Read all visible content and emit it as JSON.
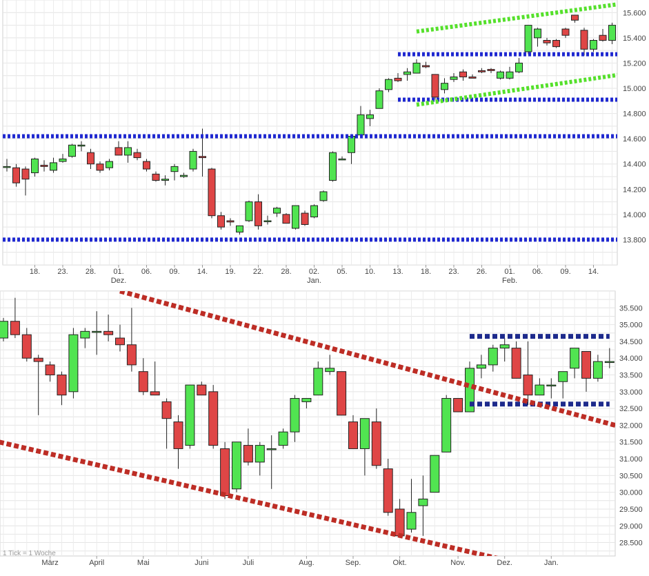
{
  "chart_data": [
    {
      "type": "candlestick",
      "scale": "daily",
      "ylim": [
        13600,
        15700
      ],
      "y_ticks": [
        13800,
        14000,
        14200,
        14400,
        14600,
        14800,
        15000,
        15200,
        15400,
        15600
      ],
      "y_tick_labels": [
        "13.800",
        "14.000",
        "14.200",
        "14.400",
        "14.600",
        "14.800",
        "15.000",
        "15.200",
        "15.400",
        "15.600"
      ],
      "x_ticks": [
        {
          "label": "18.",
          "sub": "",
          "i": 3
        },
        {
          "label": "23.",
          "sub": "",
          "i": 6
        },
        {
          "label": "28.",
          "sub": "",
          "i": 9
        },
        {
          "label": "01.",
          "sub": "Dez.",
          "i": 12
        },
        {
          "label": "06.",
          "sub": "",
          "i": 15
        },
        {
          "label": "09.",
          "sub": "",
          "i": 18
        },
        {
          "label": "14.",
          "sub": "",
          "i": 21
        },
        {
          "label": "19.",
          "sub": "",
          "i": 24
        },
        {
          "label": "22.",
          "sub": "",
          "i": 27
        },
        {
          "label": "28.",
          "sub": "",
          "i": 30
        },
        {
          "label": "02.",
          "sub": "Jan.",
          "i": 33
        },
        {
          "label": "05.",
          "sub": "",
          "i": 36
        },
        {
          "label": "10.",
          "sub": "",
          "i": 39
        },
        {
          "label": "13.",
          "sub": "",
          "i": 42
        },
        {
          "label": "18.",
          "sub": "",
          "i": 45
        },
        {
          "label": "23.",
          "sub": "",
          "i": 48
        },
        {
          "label": "26.",
          "sub": "",
          "i": 51
        },
        {
          "label": "01.",
          "sub": "Feb.",
          "i": 54
        },
        {
          "label": "06.",
          "sub": "",
          "i": 57
        },
        {
          "label": "09.",
          "sub": "",
          "i": 60
        },
        {
          "label": "14.",
          "sub": "",
          "i": 63
        }
      ],
      "candles": [
        [
          14380,
          14440,
          14340,
          14380
        ],
        [
          14370,
          14400,
          14220,
          14250
        ],
        [
          14360,
          14380,
          14150,
          14280
        ],
        [
          14330,
          14450,
          14300,
          14440
        ],
        [
          14390,
          14430,
          14340,
          14380
        ],
        [
          14350,
          14450,
          14330,
          14410
        ],
        [
          14420,
          14480,
          14410,
          14440
        ],
        [
          14460,
          14560,
          14450,
          14550
        ],
        [
          14550,
          14580,
          14500,
          14550
        ],
        [
          14490,
          14520,
          14360,
          14400
        ],
        [
          14400,
          14420,
          14330,
          14350
        ],
        [
          14370,
          14440,
          14350,
          14420
        ],
        [
          14530,
          14580,
          14470,
          14470
        ],
        [
          14470,
          14580,
          14410,
          14530
        ],
        [
          14490,
          14520,
          14430,
          14450
        ],
        [
          14420,
          14440,
          14340,
          14360
        ],
        [
          14320,
          14340,
          14260,
          14270
        ],
        [
          14270,
          14310,
          14230,
          14280
        ],
        [
          14340,
          14400,
          14270,
          14380
        ],
        [
          14300,
          14330,
          14290,
          14310
        ],
        [
          14360,
          14520,
          14340,
          14500
        ],
        [
          14460,
          14680,
          14300,
          14450
        ],
        [
          14360,
          14370,
          13970,
          13990
        ],
        [
          13990,
          14020,
          13880,
          13900
        ],
        [
          13950,
          13970,
          13910,
          13940
        ],
        [
          13860,
          13910,
          13840,
          13910
        ],
        [
          13950,
          14110,
          13940,
          14100
        ],
        [
          14100,
          14160,
          13880,
          13910
        ],
        [
          13950,
          13990,
          13920,
          13950
        ],
        [
          14010,
          14060,
          13980,
          14050
        ],
        [
          14000,
          14010,
          13940,
          13930
        ],
        [
          13890,
          14070,
          13880,
          14070
        ],
        [
          14010,
          14030,
          13910,
          13920
        ],
        [
          13980,
          14080,
          13970,
          14070
        ],
        [
          14110,
          14190,
          14100,
          14180
        ],
        [
          14270,
          14500,
          14260,
          14490
        ],
        [
          14440,
          14460,
          14430,
          14440
        ],
        [
          14490,
          14620,
          14400,
          14620
        ],
        [
          14630,
          14860,
          14620,
          14790
        ],
        [
          14760,
          14830,
          14700,
          14790
        ],
        [
          14840,
          15000,
          14840,
          14980
        ],
        [
          14990,
          15080,
          14970,
          15070
        ],
        [
          15080,
          15120,
          15050,
          15060
        ],
        [
          15110,
          15160,
          15060,
          15130
        ],
        [
          15120,
          15230,
          15120,
          15200
        ],
        [
          15180,
          15210,
          15160,
          15170
        ],
        [
          15110,
          15110,
          14910,
          14930
        ],
        [
          14990,
          15080,
          14960,
          15040
        ],
        [
          15070,
          15120,
          15050,
          15090
        ],
        [
          15130,
          15150,
          15060,
          15090
        ],
        [
          15090,
          15110,
          15080,
          15080
        ],
        [
          15140,
          15160,
          15120,
          15130
        ],
        [
          15150,
          15160,
          15120,
          15140
        ],
        [
          15080,
          15140,
          15070,
          15130
        ],
        [
          15080,
          15170,
          15070,
          15130
        ],
        [
          15130,
          15240,
          15120,
          15200
        ],
        [
          15290,
          15500,
          15270,
          15500
        ],
        [
          15400,
          15480,
          15330,
          15470
        ],
        [
          15380,
          15400,
          15340,
          15360
        ],
        [
          15380,
          15390,
          15320,
          15330
        ],
        [
          15470,
          15480,
          15400,
          15420
        ],
        [
          15580,
          15580,
          15520,
          15540
        ],
        [
          15460,
          15480,
          15260,
          15310
        ],
        [
          15310,
          15390,
          15290,
          15380
        ],
        [
          15420,
          15470,
          15370,
          15380
        ],
        [
          15380,
          15520,
          15350,
          15500
        ]
      ],
      "support_resistance": [
        {
          "style": "dotted",
          "color": "#1f28d0",
          "y": 14620,
          "from": -1,
          "to": 66
        },
        {
          "style": "dotted",
          "color": "#1f28d0",
          "y": 13800,
          "from": -1,
          "to": 66
        },
        {
          "style": "dotted",
          "color": "#1f28d0",
          "y": 15270,
          "from": 42,
          "to": 66
        },
        {
          "style": "dotted",
          "color": "#1f28d0",
          "y": 14910,
          "from": 42,
          "to": 66
        }
      ],
      "trend_lines": [
        {
          "style": "dotted",
          "color": "#55e02b",
          "from": [
            44,
            15450
          ],
          "to": [
            66,
            15670
          ]
        },
        {
          "style": "dotted",
          "color": "#55e02b",
          "from": [
            44,
            14870
          ],
          "to": [
            66,
            15110
          ]
        }
      ],
      "up_color": "#51e451",
      "down_color": "#df4646"
    },
    {
      "type": "candlestick",
      "scale": "weekly",
      "ylim": [
        28100,
        36000
      ],
      "y_ticks": [
        28500,
        29000,
        29500,
        30000,
        30500,
        31000,
        31500,
        32000,
        32500,
        33000,
        33500,
        34000,
        34500,
        35000,
        35500
      ],
      "y_tick_labels": [
        "28.500",
        "29.000",
        "29.500",
        "30.000",
        "30.500",
        "31.000",
        "31.500",
        "32.000",
        "32.500",
        "33.000",
        "33.500",
        "34.000",
        "34.500",
        "35.000",
        "35.500"
      ],
      "x_ticks": [
        {
          "label": "März",
          "i": 4
        },
        {
          "label": "April",
          "i": 8
        },
        {
          "label": "Mai",
          "i": 12
        },
        {
          "label": "Juni",
          "i": 17
        },
        {
          "label": "Juli",
          "i": 21
        },
        {
          "label": "Aug.",
          "i": 26
        },
        {
          "label": "Sep.",
          "i": 30
        },
        {
          "label": "Okt.",
          "i": 34
        },
        {
          "label": "Nov.",
          "i": 39
        },
        {
          "label": "Dez.",
          "i": 43
        },
        {
          "label": "Jan.",
          "i": 47
        }
      ],
      "candles": [
        [
          34600,
          35200,
          34500,
          35100
        ],
        [
          35100,
          35800,
          34600,
          34700
        ],
        [
          34700,
          34900,
          33900,
          34000
        ],
        [
          34000,
          34100,
          32300,
          33900
        ],
        [
          33800,
          33900,
          33300,
          33500
        ],
        [
          33500,
          33600,
          32600,
          32900
        ],
        [
          33000,
          34900,
          32800,
          34700
        ],
        [
          34600,
          34900,
          34300,
          34800
        ],
        [
          34800,
          35400,
          34100,
          34800
        ],
        [
          34800,
          35300,
          34500,
          34700
        ],
        [
          34600,
          35000,
          34200,
          34400
        ],
        [
          34400,
          35500,
          33600,
          33800
        ],
        [
          33600,
          34000,
          32900,
          33000
        ],
        [
          33000,
          33900,
          32900,
          32900
        ],
        [
          32700,
          32800,
          31300,
          32200
        ],
        [
          32100,
          32300,
          30700,
          31300
        ],
        [
          31400,
          33200,
          31300,
          33200
        ],
        [
          33200,
          33300,
          32900,
          32900
        ],
        [
          33000,
          33200,
          31300,
          31400
        ],
        [
          31300,
          31500,
          29800,
          29900
        ],
        [
          30100,
          31500,
          30000,
          31500
        ],
        [
          31400,
          31900,
          30800,
          30900
        ],
        [
          30900,
          31500,
          30500,
          31400
        ],
        [
          31300,
          31700,
          30100,
          31300
        ],
        [
          31400,
          31900,
          31300,
          31800
        ],
        [
          31800,
          32900,
          31500,
          32800
        ],
        [
          32700,
          32800,
          32500,
          32800
        ],
        [
          32900,
          33900,
          32900,
          33700
        ],
        [
          33600,
          34100,
          33500,
          33700
        ],
        [
          33600,
          33600,
          32300,
          32300
        ],
        [
          32100,
          32300,
          31300,
          31300
        ],
        [
          31300,
          32200,
          30500,
          32200
        ],
        [
          32100,
          32500,
          30700,
          30800
        ],
        [
          30700,
          31000,
          29300,
          29400
        ],
        [
          29500,
          29800,
          28700,
          28700
        ],
        [
          28900,
          30400,
          28800,
          29400
        ],
        [
          29600,
          30500,
          28700,
          29800
        ],
        [
          30000,
          31100,
          30000,
          31100
        ],
        [
          31200,
          32900,
          31200,
          32800
        ],
        [
          32800,
          32800,
          32400,
          32400
        ],
        [
          32400,
          33900,
          32400,
          33700
        ],
        [
          33700,
          34100,
          33400,
          33800
        ],
        [
          33800,
          34400,
          33600,
          34300
        ],
        [
          34300,
          34600,
          33900,
          34400
        ],
        [
          34300,
          34500,
          33400,
          33400
        ],
        [
          33500,
          34500,
          32600,
          32900
        ],
        [
          32900,
          33400,
          32900,
          33200
        ],
        [
          33200,
          33400,
          32800,
          33200
        ],
        [
          33300,
          33600,
          32800,
          33600
        ],
        [
          33700,
          34300,
          33400,
          34300
        ],
        [
          34200,
          34200,
          33000,
          33400
        ],
        [
          33400,
          34100,
          33300,
          33900
        ],
        [
          33900,
          34300,
          33700,
          33900
        ]
      ],
      "support_resistance": [
        {
          "style": "dotted",
          "color": "#1d2a8c",
          "y": 34650,
          "from": 40,
          "to": 52
        },
        {
          "style": "dotted",
          "color": "#1d2a8c",
          "y": 32630,
          "from": 40,
          "to": 52
        }
      ],
      "trend_lines": [
        {
          "style": "dotted",
          "color": "#bd2d25",
          "from": [
            10,
            36000
          ],
          "to": [
            53,
            31950
          ]
        },
        {
          "style": "dotted",
          "color": "#bd2d25",
          "from": [
            -1,
            31550
          ],
          "to": [
            44,
            27900
          ]
        }
      ],
      "up_color": "#51e451",
      "down_color": "#df4646"
    }
  ],
  "footer_text": "1 Tick = 1 Woche"
}
